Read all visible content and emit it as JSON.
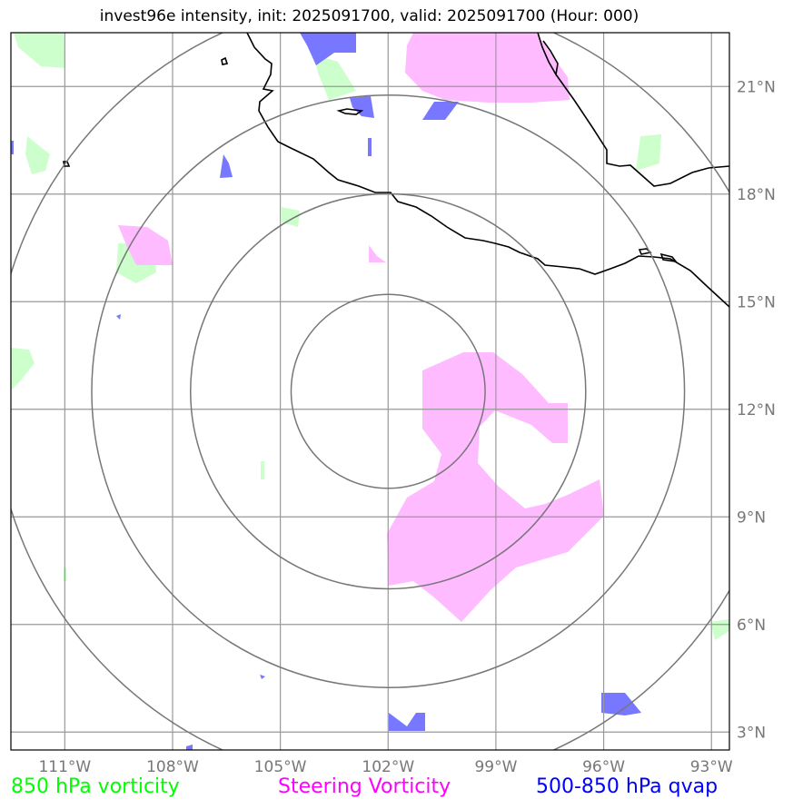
{
  "title": "invest96e intensity, init: 2025091700, valid: 2025091700 (Hour: 000)",
  "legend": [
    {
      "label": "850 hPa vorticity",
      "color": "#00ff00"
    },
    {
      "label": "Steering Vorticity",
      "color": "#ff00ff"
    },
    {
      "label": "500-850 hPa qvap",
      "color": "#0000ff"
    }
  ],
  "chart_data": {
    "type": "map",
    "lon_ticks": [
      "111°W",
      "108°W",
      "105°W",
      "102°W",
      "99°W",
      "96°W",
      "93°W"
    ],
    "lat_ticks": [
      "21°N",
      "18°N",
      "15°N",
      "12°N",
      "9°N",
      "6°N",
      "3°N"
    ],
    "lon_values": [
      -111,
      -108,
      -105,
      -102,
      -99,
      -96,
      -93
    ],
    "lat_values": [
      21,
      18,
      15,
      12,
      9,
      6,
      3
    ],
    "xlim": [
      -112.5,
      -92.5
    ],
    "ylim": [
      2.5,
      22.5
    ],
    "grid": true,
    "center": {
      "lon": -102.0,
      "lat": 12.5
    },
    "range_rings_deg": [
      2.7,
      5.5,
      8.25,
      11
    ],
    "colors": {
      "vorticity": "#ccffcc",
      "steering": "#ffbbff",
      "qvap": "#7777ff",
      "grid": "#999999",
      "rings": "#777777",
      "coast": "#000000"
    }
  }
}
